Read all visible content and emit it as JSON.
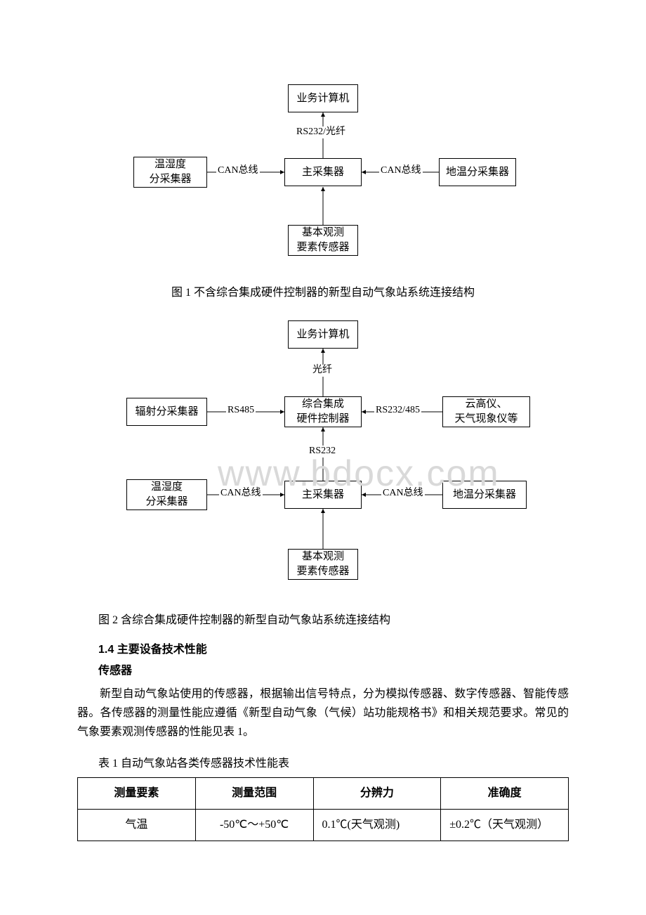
{
  "diagram1": {
    "nodes": {
      "top": {
        "label": "业务计算机"
      },
      "left": {
        "label": "温湿度\n分采集器"
      },
      "center": {
        "label": "主采集器"
      },
      "right": {
        "label": "地温分采集器"
      },
      "bottom": {
        "label": "基本观测\n要素传感器"
      }
    },
    "edges": {
      "top_center": "RS232/光纤",
      "left_center": "CAN总线",
      "right_center": "CAN总线"
    },
    "caption": "图 1 不含综合集成硬件控制器的新型自动气象站系统连接结构"
  },
  "diagram2": {
    "nodes": {
      "top": {
        "label": "业务计算机"
      },
      "mleft": {
        "label": "辐射分采集器"
      },
      "mcenter": {
        "label": "综合集成\n硬件控制器"
      },
      "mright": {
        "label": "云高仪、\n天气现象仪等"
      },
      "bleft": {
        "label": "温湿度\n分采集器"
      },
      "bcenter": {
        "label": "主采集器"
      },
      "bright": {
        "label": "地温分采集器"
      },
      "bottom": {
        "label": "基本观测\n要素传感器"
      }
    },
    "edges": {
      "top_mcenter": "光纤",
      "mleft_mcenter": "RS485",
      "mright_mcenter": "RS232/485",
      "mcenter_bcenter": "RS232",
      "bleft_bcenter": "CAN总线",
      "bright_bcenter": "CAN总线"
    },
    "caption": "图 2 含综合集成硬件控制器的新型自动气象站系统连接结构"
  },
  "section_1_4": {
    "heading": "1.4  主要设备技术性能",
    "subheading": "传感器",
    "paragraph": "新型自动气象站使用的传感器，根据输出信号特点，分为模拟传感器、数字传感器、智能传感器。各传感器的测量性能应遵循《新型自动气象（气候）站功能规格书》和相关规范要求。常见的气象要素观测传感器的性能见表 1。",
    "table_caption": "表 1 自动气象站各类传感器技术性能表"
  },
  "table1": {
    "headers": [
      "测量要素",
      "测量范围",
      "分辨力",
      "准确度"
    ],
    "rows": [
      [
        "气温",
        "-50℃～+50℃",
        "0.1℃(天气观测)",
        "±0.2℃（天气观测）"
      ]
    ]
  },
  "watermark": "www.bdocx.com",
  "colors": {
    "text": "#000000",
    "border": "#000000",
    "background": "#ffffff",
    "watermark": "#d9d9d9"
  }
}
